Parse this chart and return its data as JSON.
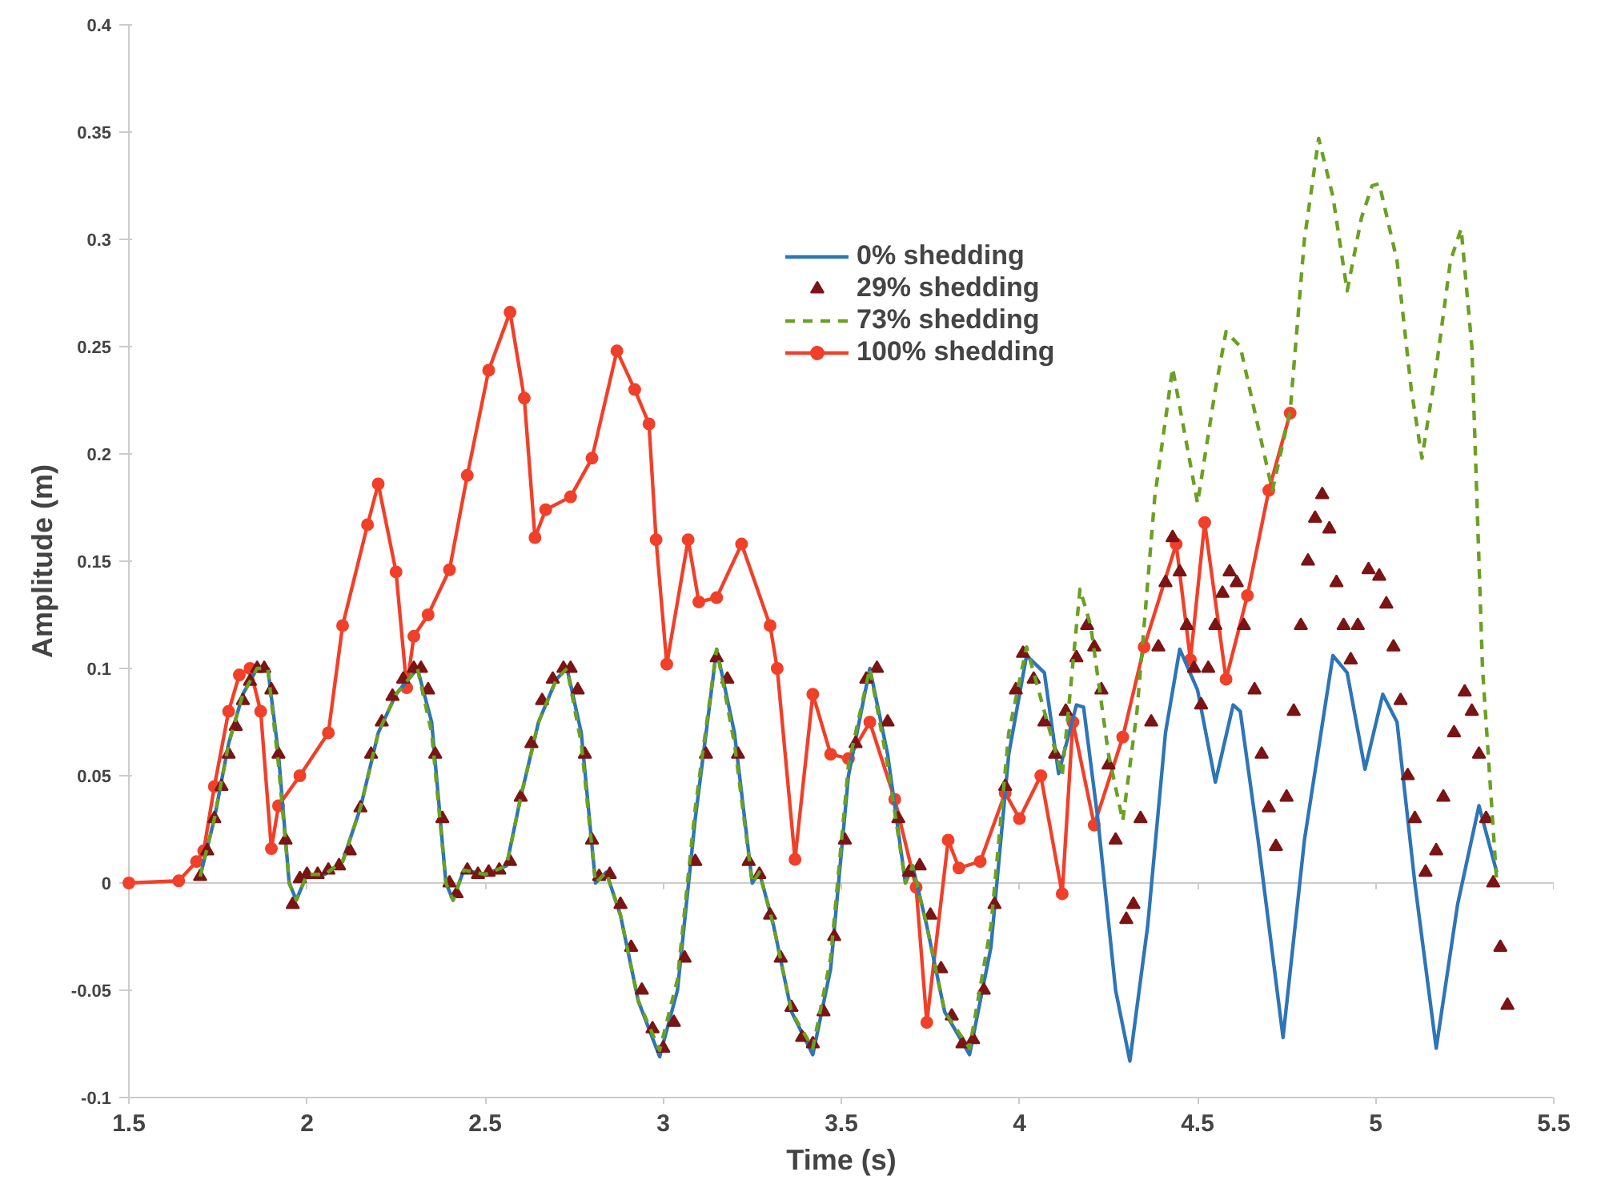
{
  "chart_data": {
    "type": "line",
    "xlabel": "Time (s)",
    "ylabel": "Amplitude (m)",
    "xlim": [
      1.5,
      5.5
    ],
    "ylim": [
      -0.1,
      0.4
    ],
    "xticks": [
      1.5,
      2,
      2.5,
      3,
      3.5,
      4,
      4.5,
      5,
      5.5
    ],
    "yticks": [
      -0.1,
      -0.05,
      0,
      0.05,
      0.1,
      0.15,
      0.2,
      0.25,
      0.3,
      0.35,
      0.4
    ],
    "legend": "top right",
    "series": [
      {
        "name": "0% shedding",
        "line_style": "solid",
        "marker": "none",
        "color": "#2e75b6",
        "x": [
          1.7,
          1.74,
          1.78,
          1.82,
          1.86,
          1.89,
          1.92,
          1.95,
          1.97,
          2.0,
          2.05,
          2.1,
          2.15,
          2.2,
          2.25,
          2.31,
          2.35,
          2.39,
          2.41,
          2.44,
          2.5,
          2.56,
          2.6,
          2.65,
          2.7,
          2.73,
          2.77,
          2.81,
          2.84,
          2.88,
          2.93,
          2.99,
          3.04,
          3.09,
          3.15,
          3.2,
          3.25,
          3.27,
          3.31,
          3.36,
          3.42,
          3.47,
          3.52,
          3.58,
          3.63,
          3.68,
          3.7,
          3.74,
          3.79,
          3.86,
          3.92,
          3.97,
          4.02,
          4.07,
          4.11,
          4.16,
          4.18,
          4.22,
          4.27,
          4.31,
          4.36,
          4.41,
          4.45,
          4.5,
          4.55,
          4.6,
          4.62,
          4.67,
          4.74,
          4.8,
          4.88,
          4.92,
          4.97,
          5.02,
          5.06,
          5.11,
          5.17,
          5.23,
          5.29,
          5.34
        ],
        "values": [
          0.003,
          0.03,
          0.065,
          0.088,
          0.1,
          0.1,
          0.06,
          0,
          -0.008,
          0.004,
          0.004,
          0.01,
          0.035,
          0.07,
          0.088,
          0.1,
          0.075,
          0,
          -0.008,
          0.006,
          0.004,
          0.008,
          0.04,
          0.075,
          0.095,
          0.1,
          0.07,
          0,
          0.005,
          -0.015,
          -0.055,
          -0.081,
          -0.05,
          0.03,
          0.109,
          0.07,
          0,
          0.005,
          -0.02,
          -0.06,
          -0.08,
          -0.04,
          0.05,
          0.1,
          0.06,
          0,
          0.008,
          -0.02,
          -0.06,
          -0.08,
          -0.03,
          0.06,
          0.106,
          0.098,
          0.051,
          0.083,
          0.082,
          0.03,
          -0.05,
          -0.083,
          -0.02,
          0.07,
          0.109,
          0.09,
          0.047,
          0.083,
          0.08,
          0.02,
          -0.072,
          0.02,
          0.106,
          0.098,
          0.053,
          0.088,
          0.075,
          0,
          -0.077,
          -0.01,
          0.036,
          0.005
        ]
      },
      {
        "name": "29% shedding",
        "type": "scatter",
        "marker": "triangle",
        "color": "#7b1414",
        "x": [
          1.7,
          1.72,
          1.74,
          1.76,
          1.78,
          1.8,
          1.82,
          1.84,
          1.86,
          1.88,
          1.9,
          1.92,
          1.94,
          1.96,
          1.98,
          2.0,
          2.03,
          2.06,
          2.09,
          2.12,
          2.15,
          2.18,
          2.21,
          2.24,
          2.27,
          2.3,
          2.32,
          2.34,
          2.36,
          2.38,
          2.4,
          2.42,
          2.45,
          2.48,
          2.51,
          2.54,
          2.57,
          2.6,
          2.63,
          2.66,
          2.69,
          2.72,
          2.74,
          2.76,
          2.78,
          2.8,
          2.82,
          2.85,
          2.88,
          2.91,
          2.94,
          2.97,
          3.0,
          3.03,
          3.06,
          3.09,
          3.12,
          3.15,
          3.18,
          3.21,
          3.24,
          3.27,
          3.3,
          3.33,
          3.36,
          3.39,
          3.42,
          3.45,
          3.48,
          3.51,
          3.54,
          3.57,
          3.6,
          3.63,
          3.66,
          3.69,
          3.72,
          3.75,
          3.78,
          3.81,
          3.84,
          3.87,
          3.9,
          3.93,
          3.96,
          3.99,
          4.01,
          4.04,
          4.07,
          4.1,
          4.13,
          4.16,
          4.19,
          4.21,
          4.23,
          4.25,
          4.27,
          4.3,
          4.32,
          4.34,
          4.37,
          4.39,
          4.41,
          4.43,
          4.45,
          4.47,
          4.49,
          4.51,
          4.53,
          4.55,
          4.57,
          4.59,
          4.61,
          4.63,
          4.66,
          4.68,
          4.7,
          4.72,
          4.75,
          4.77,
          4.79,
          4.81,
          4.83,
          4.85,
          4.87,
          4.89,
          4.91,
          4.93,
          4.95,
          4.98,
          5.01,
          5.03,
          5.05,
          5.07,
          5.09,
          5.11,
          5.14,
          5.17,
          5.19,
          5.22,
          5.25,
          5.27,
          5.29,
          5.31,
          5.33,
          5.35,
          5.37
        ],
        "values": [
          0.003,
          0.015,
          0.03,
          0.045,
          0.06,
          0.073,
          0.085,
          0.094,
          0.1,
          0.1,
          0.09,
          0.06,
          0.02,
          -0.01,
          0.002,
          0.004,
          0.004,
          0.006,
          0.008,
          0.015,
          0.035,
          0.06,
          0.075,
          0.087,
          0.095,
          0.1,
          0.1,
          0.09,
          0.06,
          0.03,
          0,
          -0.005,
          0.006,
          0.004,
          0.005,
          0.006,
          0.01,
          0.04,
          0.065,
          0.085,
          0.095,
          0.1,
          0.1,
          0.09,
          0.06,
          0.02,
          0.003,
          0.004,
          -0.01,
          -0.03,
          -0.05,
          -0.068,
          -0.077,
          -0.065,
          -0.035,
          0.01,
          0.06,
          0.105,
          0.095,
          0.06,
          0.01,
          0.004,
          -0.015,
          -0.035,
          -0.058,
          -0.072,
          -0.075,
          -0.06,
          -0.025,
          0.02,
          0.065,
          0.095,
          0.1,
          0.075,
          0.03,
          0.005,
          0.008,
          -0.015,
          -0.04,
          -0.062,
          -0.075,
          -0.073,
          -0.05,
          -0.01,
          0.045,
          0.09,
          0.107,
          0.095,
          0.075,
          0.06,
          0.08,
          0.105,
          0.12,
          0.11,
          0.09,
          0.055,
          0.02,
          -0.017,
          -0.01,
          0.03,
          0.075,
          0.11,
          0.14,
          0.161,
          0.145,
          0.12,
          0.1,
          0.083,
          0.1,
          0.12,
          0.135,
          0.145,
          0.14,
          0.12,
          0.09,
          0.06,
          0.035,
          0.017,
          0.04,
          0.08,
          0.12,
          0.15,
          0.17,
          0.181,
          0.165,
          0.14,
          0.12,
          0.104,
          0.12,
          0.146,
          0.143,
          0.13,
          0.11,
          0.085,
          0.05,
          0.03,
          0.005,
          0.015,
          0.04,
          0.07,
          0.089,
          0.08,
          0.06,
          0.03,
          0,
          -0.03,
          -0.057
        ]
      },
      {
        "name": "73% shedding",
        "line_style": "dashed",
        "marker": "none",
        "color": "#6aa121",
        "x": [
          1.7,
          1.74,
          1.78,
          1.82,
          1.86,
          1.89,
          1.92,
          1.95,
          1.97,
          2.0,
          2.05,
          2.1,
          2.15,
          2.2,
          2.25,
          2.31,
          2.35,
          2.39,
          2.41,
          2.44,
          2.5,
          2.56,
          2.6,
          2.65,
          2.7,
          2.73,
          2.77,
          2.81,
          2.84,
          2.88,
          2.93,
          2.99,
          3.04,
          3.09,
          3.15,
          3.2,
          3.25,
          3.27,
          3.31,
          3.36,
          3.42,
          3.47,
          3.52,
          3.58,
          3.63,
          3.68,
          3.7,
          3.74,
          3.79,
          3.86,
          3.92,
          3.97,
          4.02,
          4.07,
          4.12,
          4.17,
          4.2,
          4.25,
          4.29,
          4.33,
          4.38,
          4.43,
          4.5,
          4.55,
          4.58,
          4.62,
          4.66,
          4.71,
          4.76,
          4.8,
          4.84,
          4.88,
          4.92,
          4.96,
          4.99,
          5.01,
          5.06,
          5.1,
          5.13,
          5.17,
          5.21,
          5.24,
          5.27,
          5.3,
          5.34
        ],
        "values": [
          0.003,
          0.03,
          0.065,
          0.088,
          0.1,
          0.1,
          0.055,
          0,
          -0.008,
          0.004,
          0.004,
          0.01,
          0.035,
          0.07,
          0.088,
          0.1,
          0.07,
          0,
          -0.008,
          0.006,
          0.004,
          0.008,
          0.04,
          0.075,
          0.095,
          0.1,
          0.065,
          0,
          0.005,
          -0.015,
          -0.055,
          -0.078,
          -0.045,
          0.035,
          0.109,
          0.065,
          0,
          0.005,
          -0.02,
          -0.06,
          -0.077,
          -0.035,
          0.055,
          0.1,
          0.055,
          0,
          0.008,
          -0.02,
          -0.06,
          -0.077,
          -0.02,
          0.07,
          0.11,
          0.08,
          0.05,
          0.137,
          0.12,
          0.06,
          0.029,
          0.08,
          0.18,
          0.24,
          0.177,
          0.23,
          0.257,
          0.25,
          0.22,
          0.183,
          0.22,
          0.3,
          0.347,
          0.32,
          0.276,
          0.31,
          0.325,
          0.326,
          0.29,
          0.23,
          0.198,
          0.24,
          0.29,
          0.305,
          0.25,
          0.1,
          0
        ]
      },
      {
        "name": "100% shedding",
        "line_style": "solid",
        "marker": "circle",
        "color": "#f0402a",
        "x": [
          1.5,
          1.64,
          1.69,
          1.71,
          1.74,
          1.78,
          1.81,
          1.84,
          1.87,
          1.9,
          1.92,
          1.98,
          2.06,
          2.1,
          2.17,
          2.2,
          2.25,
          2.28,
          2.3,
          2.34,
          2.4,
          2.45,
          2.51,
          2.57,
          2.61,
          2.64,
          2.67,
          2.74,
          2.8,
          2.87,
          2.92,
          2.96,
          2.98,
          3.01,
          3.07,
          3.1,
          3.15,
          3.22,
          3.3,
          3.32,
          3.37,
          3.42,
          3.47,
          3.52,
          3.58,
          3.65,
          3.71,
          3.74,
          3.8,
          3.83,
          3.89,
          3.96,
          4.0,
          4.06,
          4.12,
          4.15,
          4.21,
          4.29,
          4.35,
          4.44,
          4.48,
          4.52,
          4.58,
          4.64,
          4.7,
          4.76
        ],
        "values": [
          0,
          0.001,
          0.01,
          0.015,
          0.045,
          0.08,
          0.097,
          0.1,
          0.08,
          0.016,
          0.036,
          0.05,
          0.07,
          0.12,
          0.167,
          0.186,
          0.145,
          0.091,
          0.115,
          0.125,
          0.146,
          0.19,
          0.239,
          0.266,
          0.226,
          0.161,
          0.174,
          0.18,
          0.198,
          0.248,
          0.23,
          0.214,
          0.16,
          0.102,
          0.16,
          0.131,
          0.133,
          0.158,
          0.12,
          0.1,
          0.011,
          0.088,
          0.06,
          0.058,
          0.075,
          0.039,
          -0.002,
          -0.065,
          0.02,
          0.007,
          0.01,
          0.042,
          0.03,
          0.05,
          -0.005,
          0.075,
          0.027,
          0.068,
          0.11,
          0.158,
          0.104,
          0.168,
          0.095,
          0.134,
          0.183,
          0.219
        ]
      }
    ]
  }
}
